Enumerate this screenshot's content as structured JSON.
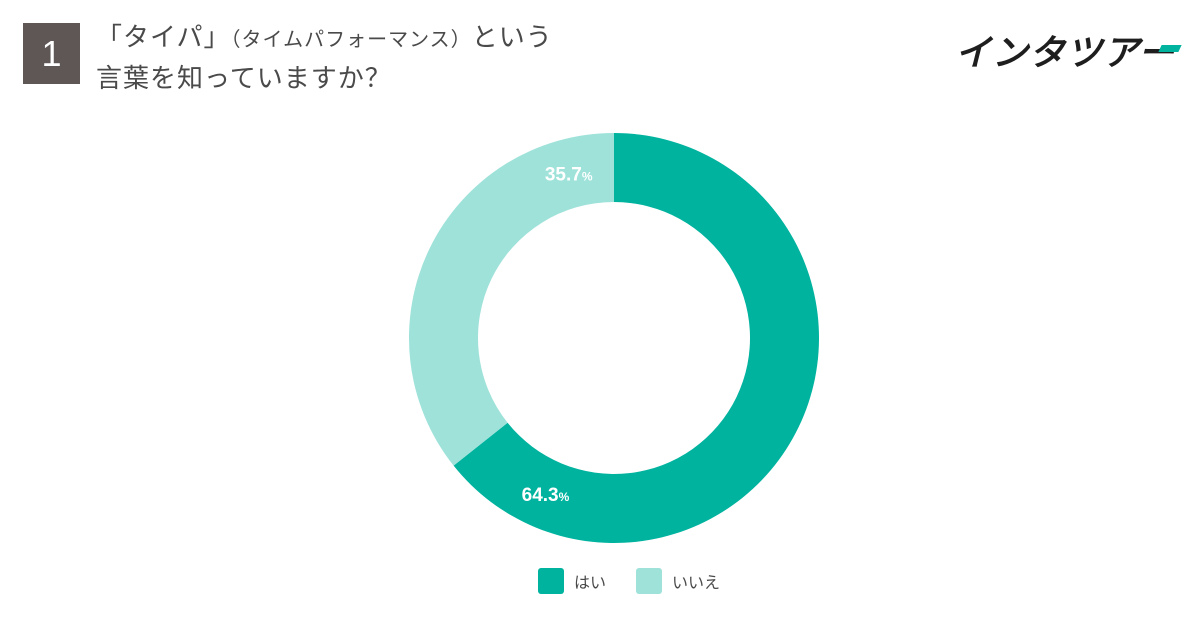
{
  "question": {
    "number": "1",
    "title_main": "「タイパ」",
    "title_paren": "（タイムパフォーマンス）",
    "title_rest": "という",
    "title_line2": "言葉を知っていますか？"
  },
  "logo": {
    "text": "インタツアー",
    "accent_color": "#00b39f"
  },
  "chart_data": {
    "type": "pie",
    "variant": "donut",
    "series": [
      {
        "name": "はい",
        "value": 64.3,
        "label": "64.3",
        "color": "#00b39f"
      },
      {
        "name": "いいえ",
        "value": 35.7,
        "label": "35.7",
        "color": "#9ee2da"
      }
    ],
    "unit": "%",
    "legend_position": "bottom"
  },
  "legend": [
    {
      "label": "はい",
      "color": "#00b39f"
    },
    {
      "label": "いいえ",
      "color": "#9ee2da"
    }
  ]
}
